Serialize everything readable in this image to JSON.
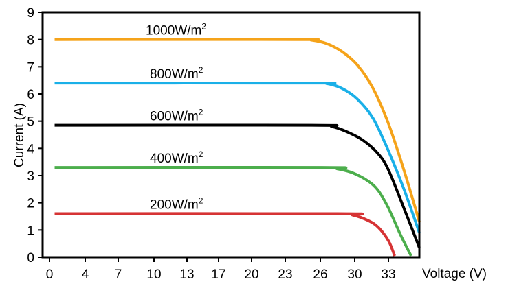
{
  "chart_data": {
    "type": "line",
    "title": "",
    "xlabel": "Voltage (V)",
    "ylabel": "Current (A)",
    "xlim": [
      0,
      36
    ],
    "ylim": [
      0,
      9
    ],
    "x_ticks": [
      0,
      4,
      7,
      10,
      13,
      17,
      20,
      23,
      26,
      30,
      33
    ],
    "y_ticks": [
      0,
      1,
      2,
      3,
      4,
      5,
      6,
      7,
      8,
      9
    ],
    "grid": false,
    "legend": "none",
    "series": [
      {
        "label_base": "1000W/m",
        "label_sup": "2",
        "color": "#f5a31a",
        "x": [
          0.5,
          24,
          25.5,
          27,
          28.5,
          30,
          31.5,
          33,
          34.5,
          36
        ],
        "y": [
          8.0,
          8.0,
          7.98,
          7.85,
          7.55,
          7.05,
          6.2,
          4.9,
          3.2,
          1.3
        ]
      },
      {
        "label_base": "800W/m",
        "label_sup": "2",
        "color": "#1ab0e8",
        "x": [
          0.5,
          25.5,
          27,
          28.5,
          30,
          31.5,
          33,
          34.5,
          36
        ],
        "y": [
          6.4,
          6.4,
          6.38,
          6.2,
          5.8,
          5.1,
          3.9,
          2.5,
          0.9
        ]
      },
      {
        "label_base": "600W/m",
        "label_sup": "2",
        "color": "#000000",
        "x": [
          0.5,
          25.5,
          27.5,
          29,
          30.5,
          32,
          33,
          34.5,
          36
        ],
        "y": [
          4.85,
          4.85,
          4.8,
          4.6,
          4.3,
          3.8,
          3.2,
          1.8,
          0.35
        ]
      },
      {
        "label_base": "400W/m",
        "label_sup": "2",
        "color": "#4cae4c",
        "x": [
          0.5,
          26.5,
          28,
          29.5,
          31,
          32,
          33,
          34.2,
          35.2
        ],
        "y": [
          3.3,
          3.3,
          3.25,
          3.1,
          2.8,
          2.45,
          1.8,
          0.8,
          0.05
        ]
      },
      {
        "label_base": "200W/m",
        "label_sup": "2",
        "color": "#d63334",
        "x": [
          0.5,
          28,
          29.5,
          31,
          32,
          33,
          33.6
        ],
        "y": [
          1.6,
          1.6,
          1.55,
          1.35,
          1.1,
          0.6,
          0.05
        ]
      }
    ]
  }
}
